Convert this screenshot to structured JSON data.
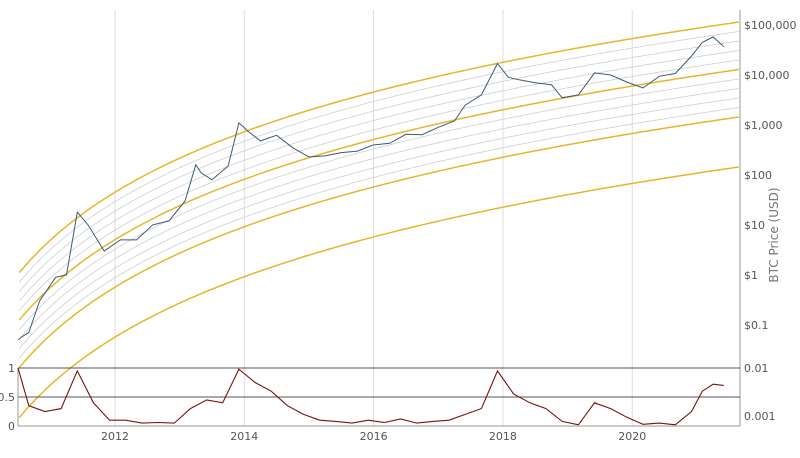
{
  "chart_data": [
    {
      "type": "line",
      "scale": "log",
      "ylabel": "BTC Price (USD)",
      "y_ticks": [
        {
          "value": 0.1,
          "label": "$0.1"
        },
        {
          "value": 1,
          "label": "$1"
        },
        {
          "value": 10,
          "label": "$10"
        },
        {
          "value": 100,
          "label": "$100"
        },
        {
          "value": 1000,
          "label": "$1,000"
        },
        {
          "value": 10000,
          "label": "$10,000"
        },
        {
          "value": 100000,
          "label": "$100,000"
        }
      ],
      "x_ticks": [
        "2012",
        "2014",
        "2016",
        "2018",
        "2020"
      ],
      "xlim": [
        "2010-07",
        "2021-09"
      ],
      "ylim": [
        0.015,
        200000
      ],
      "grid": "vertical",
      "colors": {
        "price": "#3d5a78",
        "bands_outer": "#e8b52a",
        "bands_inner": "#cfcfcf"
      },
      "price": {
        "x": [
          "2010-07",
          "2010-08",
          "2010-09",
          "2010-11",
          "2011-02",
          "2011-04",
          "2011-06",
          "2011-08",
          "2011-11",
          "2012-02",
          "2012-05",
          "2012-08",
          "2012-11",
          "2013-02",
          "2013-04",
          "2013-05",
          "2013-07",
          "2013-10",
          "2013-12",
          "2014-02",
          "2014-04",
          "2014-07",
          "2014-10",
          "2015-01",
          "2015-04",
          "2015-07",
          "2015-10",
          "2016-01",
          "2016-04",
          "2016-07",
          "2016-10",
          "2017-01",
          "2017-04",
          "2017-06",
          "2017-09",
          "2017-12",
          "2018-02",
          "2018-04",
          "2018-07",
          "2018-10",
          "2018-12",
          "2019-03",
          "2019-06",
          "2019-09",
          "2019-12",
          "2020-03",
          "2020-06",
          "2020-09",
          "2020-12",
          "2021-02",
          "2021-04",
          "2021-06"
        ],
        "y": [
          0.05,
          0.06,
          0.07,
          0.3,
          0.9,
          1.0,
          18,
          10,
          3,
          5,
          5,
          10,
          12,
          30,
          160,
          110,
          80,
          150,
          1100,
          700,
          480,
          620,
          350,
          230,
          240,
          280,
          300,
          400,
          430,
          650,
          640,
          900,
          1200,
          2500,
          4000,
          17000,
          9000,
          8000,
          7000,
          6400,
          3500,
          4000,
          11000,
          10000,
          7200,
          5500,
          9400,
          10700,
          24000,
          45000,
          58000,
          37000
        ]
      }
    },
    {
      "type": "line",
      "scale": "linear",
      "y_ticks": [
        {
          "value": 0,
          "label": "0"
        },
        {
          "value": 0.5,
          "label": "0.5"
        },
        {
          "value": 1,
          "label": "1"
        }
      ],
      "y_ticks_right": [
        "0.01",
        "0.001"
      ],
      "ylim": [
        0,
        1
      ],
      "colors": {
        "oscillator": "#7a1010",
        "reference": "#555555"
      },
      "oscillator": {
        "x": [
          "2010-07",
          "2010-09",
          "2010-12",
          "2011-03",
          "2011-06",
          "2011-09",
          "2011-12",
          "2012-03",
          "2012-06",
          "2012-09",
          "2012-12",
          "2013-03",
          "2013-06",
          "2013-09",
          "2013-12",
          "2014-03",
          "2014-06",
          "2014-09",
          "2014-12",
          "2015-03",
          "2015-06",
          "2015-09",
          "2015-12",
          "2016-03",
          "2016-06",
          "2016-09",
          "2016-12",
          "2017-03",
          "2017-06",
          "2017-09",
          "2017-12",
          "2018-03",
          "2018-06",
          "2018-09",
          "2018-12",
          "2019-03",
          "2019-06",
          "2019-09",
          "2019-12",
          "2020-03",
          "2020-06",
          "2020-09",
          "2020-12",
          "2021-02",
          "2021-04",
          "2021-06"
        ],
        "y": [
          1.0,
          0.35,
          0.25,
          0.3,
          0.95,
          0.4,
          0.1,
          0.1,
          0.05,
          0.06,
          0.05,
          0.3,
          0.45,
          0.4,
          0.98,
          0.75,
          0.6,
          0.35,
          0.2,
          0.1,
          0.08,
          0.05,
          0.1,
          0.06,
          0.12,
          0.05,
          0.08,
          0.1,
          0.2,
          0.3,
          0.95,
          0.55,
          0.4,
          0.3,
          0.08,
          0.02,
          0.4,
          0.3,
          0.15,
          0.03,
          0.05,
          0.02,
          0.25,
          0.6,
          0.72,
          0.7
        ]
      }
    }
  ]
}
